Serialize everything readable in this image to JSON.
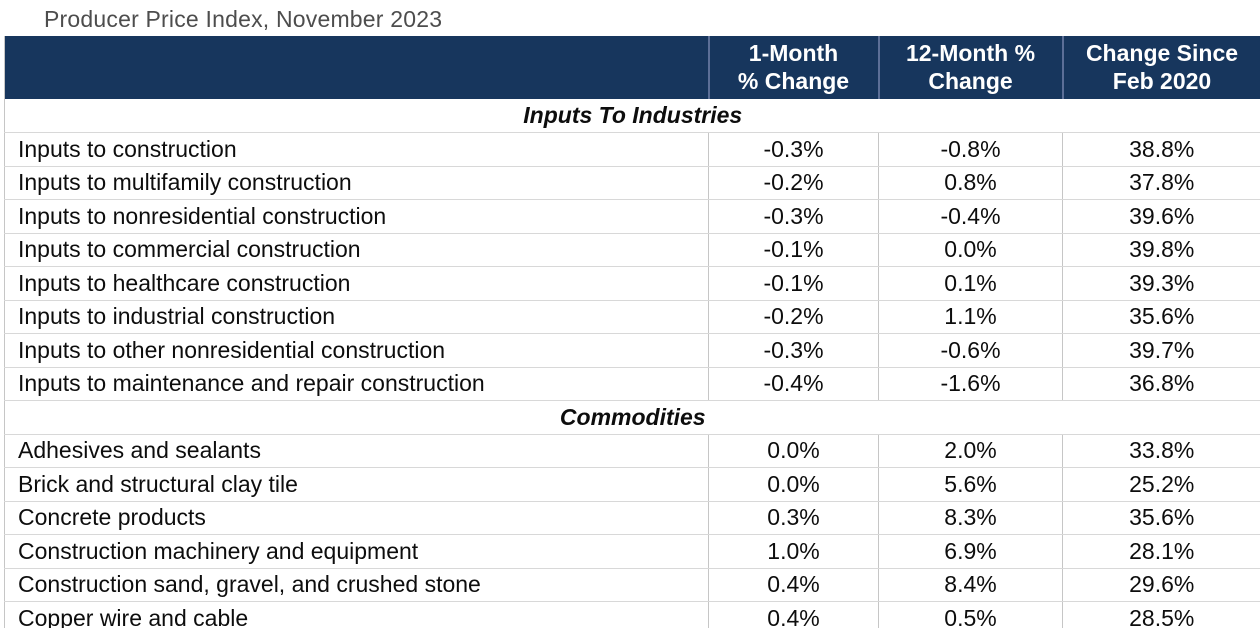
{
  "page": {
    "title": "Producer Price Index, November 2023"
  },
  "table": {
    "header": [
      "1-Month\n% Change",
      "12-Month %\nChange",
      "Change Since\nFeb 2020"
    ]
  },
  "colors": {
    "header_bg": "#17365D",
    "header_text": "#FFFFFF",
    "header_divider": "#5C6F97",
    "title_text": "#4D4D4D",
    "row_border": "#D8D8D8",
    "column_border": "#C6C6C6",
    "body_text": "#0D0D0D"
  },
  "chart_data": {
    "type": "table",
    "title": "Producer Price Index, November 2023",
    "columns": [
      "",
      "1-Month % Change",
      "12-Month % Change",
      "Change Since Feb 2020"
    ],
    "sections": [
      {
        "name": "Inputs To Industries",
        "rows": [
          [
            "Inputs to construction",
            "-0.3%",
            "-0.8%",
            "38.8%"
          ],
          [
            "Inputs to multifamily construction",
            "-0.2%",
            "0.8%",
            "37.8%"
          ],
          [
            "Inputs to nonresidential construction",
            "-0.3%",
            "-0.4%",
            "39.6%"
          ],
          [
            "Inputs to commercial construction",
            "-0.1%",
            "0.0%",
            "39.8%"
          ],
          [
            "Inputs to healthcare construction",
            "-0.1%",
            "0.1%",
            "39.3%"
          ],
          [
            "Inputs to industrial construction",
            "-0.2%",
            "1.1%",
            "35.6%"
          ],
          [
            "Inputs to other nonresidential construction",
            "-0.3%",
            "-0.6%",
            "39.7%"
          ],
          [
            "Inputs to maintenance and repair construction",
            "-0.4%",
            "-1.6%",
            "36.8%"
          ]
        ]
      },
      {
        "name": "Commodities",
        "rows": [
          [
            "Adhesives and sealants",
            "0.0%",
            "2.0%",
            "33.8%"
          ],
          [
            "Brick and structural clay tile",
            "0.0%",
            "5.6%",
            "25.2%"
          ],
          [
            "Concrete products",
            "0.3%",
            "8.3%",
            "35.6%"
          ],
          [
            "Construction machinery and equipment",
            "1.0%",
            "6.9%",
            "28.1%"
          ],
          [
            "Construction sand, gravel, and crushed stone",
            "0.4%",
            "8.4%",
            "29.6%"
          ],
          [
            "Copper wire and cable",
            "0.4%",
            "0.5%",
            "28.5%"
          ]
        ]
      }
    ]
  }
}
